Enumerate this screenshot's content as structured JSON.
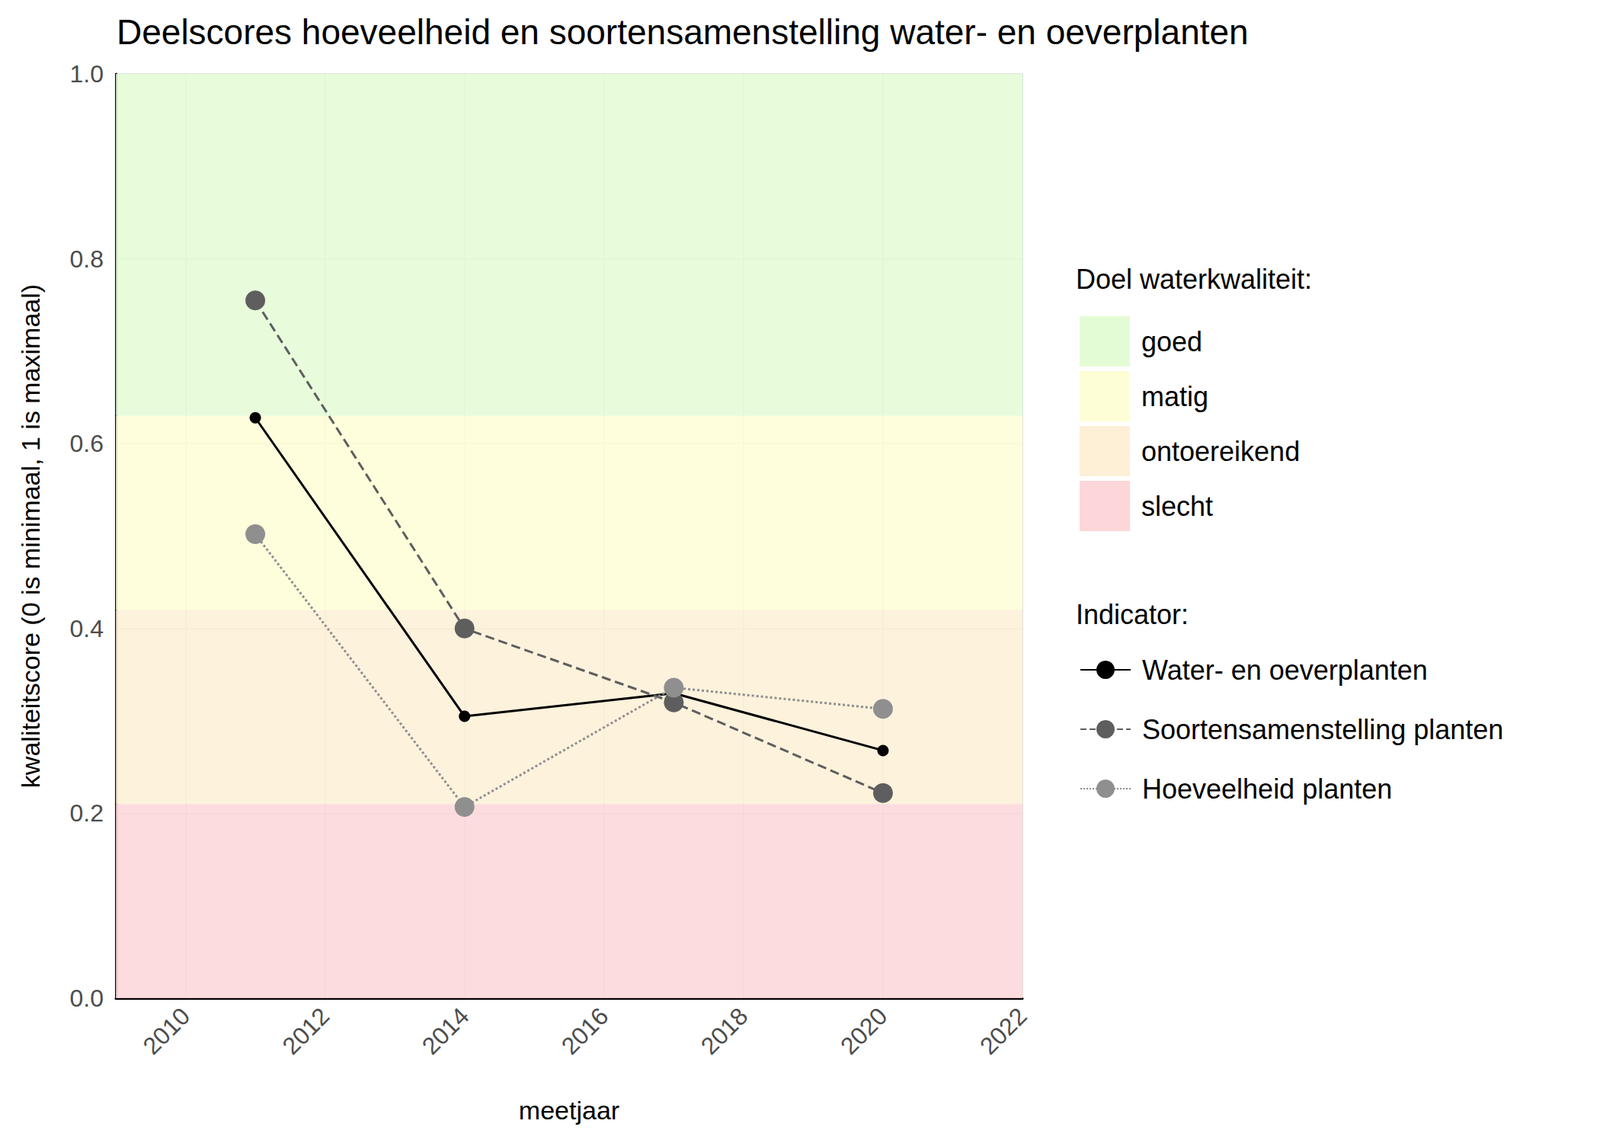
{
  "chart_data": {
    "type": "line",
    "title": "Deelscores hoeveelheid en soortensamenstelling water- en oeverplanten",
    "x_label": "meetjaar",
    "y_label": "kwaliteitscore (0 is minimaal, 1 is maximaal)",
    "x": [
      2011,
      2014,
      2017,
      2020
    ],
    "xlim": [
      2009,
      2022
    ],
    "xticks": [
      2010,
      2012,
      2014,
      2016,
      2018,
      2020,
      2022
    ],
    "ylim": [
      0,
      1
    ],
    "yticks": [
      {
        "value": 0,
        "label": "0.0"
      },
      0.2,
      0.4,
      0.6,
      0.8,
      {
        "value": 1,
        "label": "1.0"
      }
    ],
    "grid": true,
    "bands_title": "Doel waterkwaliteit:",
    "bands": [
      {
        "name": "goed",
        "from": 0.63,
        "to": 1,
        "color": "#e4fcd6"
      },
      {
        "name": "matig",
        "from": 0.42,
        "to": 0.63,
        "color": "#fefed6"
      },
      {
        "name": "ontoereikend",
        "from": 0.21,
        "to": 0.42,
        "color": "#fdf0d6"
      },
      {
        "name": "slecht",
        "from": 0,
        "to": 0.21,
        "color": "#fdd6d9"
      }
    ],
    "legend_title": "Indicator:",
    "series": [
      {
        "name": "Water- en oeverplanten",
        "color": "#000000",
        "line_style": "solid",
        "marker": "circle",
        "values": [
          0.628,
          0.305,
          0.33,
          0.268
        ]
      },
      {
        "name": "Soortensamenstelling planten",
        "color": "#5e5e5e",
        "line_style": "dashed",
        "marker": "circle",
        "values": [
          0.755,
          0.4,
          0.32,
          0.222
        ]
      },
      {
        "name": "Hoeveelheid planten",
        "color": "#8f8f8f",
        "line_style": "dotted",
        "marker": "circle",
        "values": [
          0.502,
          0.207,
          0.336,
          0.313
        ]
      }
    ]
  }
}
